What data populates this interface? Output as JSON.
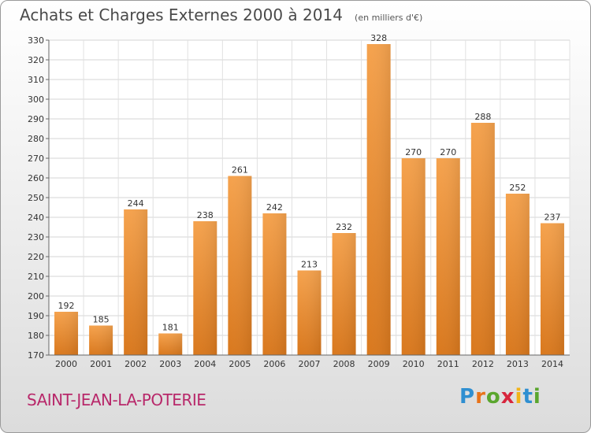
{
  "header": {
    "title": "Achats et Charges Externes 2000 à 2014",
    "unit": "(en milliers d'€)"
  },
  "footer": {
    "location": "SAINT-JEAN-LA-POTERIE",
    "brand": "Proxiti"
  },
  "colors": {
    "bar_light": "#f5a24d",
    "bar_dark": "#d9781d",
    "title": "#4a4a4a",
    "location": "#b8286a"
  },
  "chart_data": {
    "type": "bar",
    "title": "Achats et Charges Externes 2000 à 2014",
    "subtitle": "(en milliers d'€)",
    "categories": [
      "2000",
      "2001",
      "2002",
      "2003",
      "2004",
      "2005",
      "2006",
      "2007",
      "2008",
      "2009",
      "2010",
      "2011",
      "2012",
      "2013",
      "2014"
    ],
    "values": [
      192,
      185,
      244,
      181,
      238,
      261,
      242,
      213,
      232,
      328,
      270,
      270,
      288,
      252,
      237
    ],
    "ylim": [
      170,
      330
    ],
    "yticks": [
      170,
      180,
      190,
      200,
      210,
      220,
      230,
      240,
      250,
      260,
      270,
      280,
      290,
      300,
      310,
      320,
      330
    ],
    "grid": true,
    "xlabel": "",
    "ylabel": ""
  }
}
